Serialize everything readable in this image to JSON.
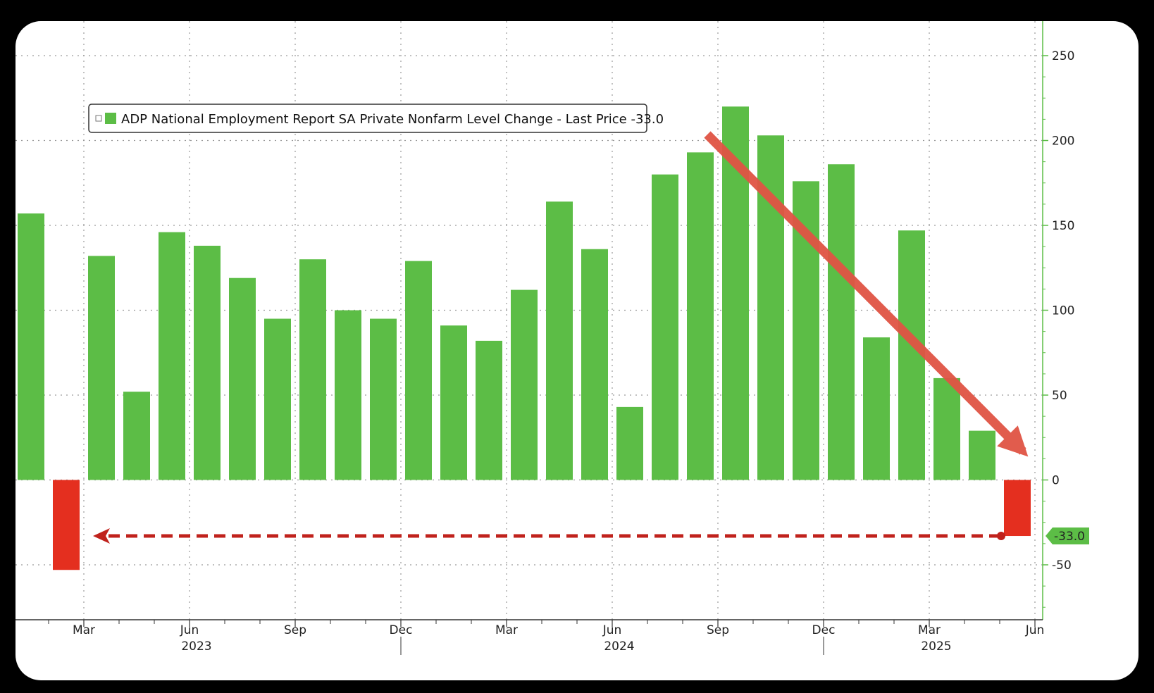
{
  "chart_data": {
    "type": "bar",
    "legend": {
      "label": "ADP National Employment Report SA Private Nonfarm Level Change - Last Price",
      "last_price": "-33.0",
      "placement": "top-left"
    },
    "x_month_labels": [
      {
        "label": "Mar",
        "bar_index": 1.5
      },
      {
        "label": "Jun",
        "bar_index": 4.5
      },
      {
        "label": "Sep",
        "bar_index": 7.5
      },
      {
        "label": "Dec",
        "bar_index": 10.5
      },
      {
        "label": "Mar",
        "bar_index": 13.5
      },
      {
        "label": "Jun",
        "bar_index": 16.5
      },
      {
        "label": "Sep",
        "bar_index": 19.5
      },
      {
        "label": "Dec",
        "bar_index": 22.5
      },
      {
        "label": "Mar",
        "bar_index": 25.5
      },
      {
        "label": "Jun",
        "bar_index": 28.5
      }
    ],
    "x_year_labels": [
      {
        "label": "2023",
        "bar_index": 4.7
      },
      {
        "label": "2024",
        "bar_index": 16.7
      },
      {
        "label": "2025",
        "bar_index": 25.7
      }
    ],
    "series": [
      {
        "values": [
          157,
          -53,
          132,
          52,
          146,
          138,
          119,
          95,
          130,
          100,
          95,
          129,
          91,
          82,
          112,
          164,
          136,
          43,
          180,
          193,
          220,
          203,
          176,
          186,
          84,
          147,
          60,
          29,
          -33
        ],
        "colors": {
          "positive": "#5cbd46",
          "negative": "#e42f1f"
        }
      }
    ],
    "y_ticks": [
      -50,
      0,
      50,
      100,
      150,
      200,
      250
    ],
    "ylim": [
      -82,
      270
    ],
    "y_axis_side": "right",
    "grid": true,
    "last_value_tag": "-33.0",
    "annotations": {
      "trend_arrow_color": "#e05444",
      "dashed_arrow_color": "#c0221c"
    }
  }
}
